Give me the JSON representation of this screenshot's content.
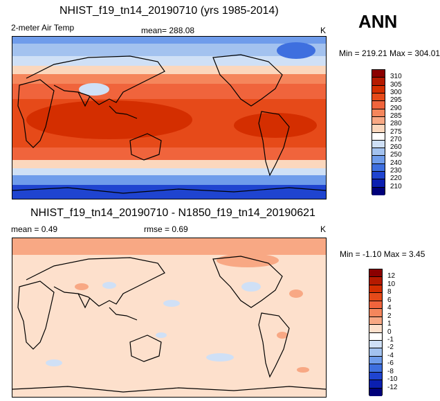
{
  "top": {
    "title": "NHIST_f19_tn14_20190710 (yrs 1985-2014)",
    "variable": "2-meter Air Temp",
    "mean": "mean= 288.08",
    "units": "K",
    "season": "ANN",
    "minmax": "Min = 219.21 Max = 304.01",
    "colorbar": {
      "labels": [
        "310",
        "305",
        "300",
        "295",
        "290",
        "285",
        "280",
        "275",
        "270",
        "260",
        "250",
        "240",
        "230",
        "220",
        "210"
      ],
      "colors": [
        "#8b0000",
        "#b51a00",
        "#d42e00",
        "#e64a19",
        "#f0643c",
        "#f5865c",
        "#f8a884",
        "#fbd7bd",
        "#ffffff",
        "#cfe0f6",
        "#a3c2ef",
        "#6f9ceb",
        "#3e6fdf",
        "#1f44d0",
        "#0b1fb0",
        "#00007a"
      ]
    }
  },
  "bottom": {
    "title": "NHIST_f19_tn14_20190710 - N1850_f19_tn14_20190621",
    "mean": "mean =   0.49",
    "rmse": "rmse =   0.69",
    "units": "K",
    "minmax": "Min =  -1.10 Max =   3.45",
    "colorbar": {
      "labels": [
        "12",
        "10",
        "8",
        "6",
        "4",
        "2",
        "1",
        "0",
        "-1",
        "-2",
        "-4",
        "-6",
        "-8",
        "-10",
        "-12"
      ],
      "colors": [
        "#8b0000",
        "#b51a00",
        "#d42e00",
        "#e64a19",
        "#f0643c",
        "#f5865c",
        "#f8a884",
        "#fde0cc",
        "#ffffff",
        "#cfe0f6",
        "#a3c2ef",
        "#6f9ceb",
        "#3e6fdf",
        "#1f44d0",
        "#0b1fb0",
        "#00007a"
      ]
    }
  }
}
